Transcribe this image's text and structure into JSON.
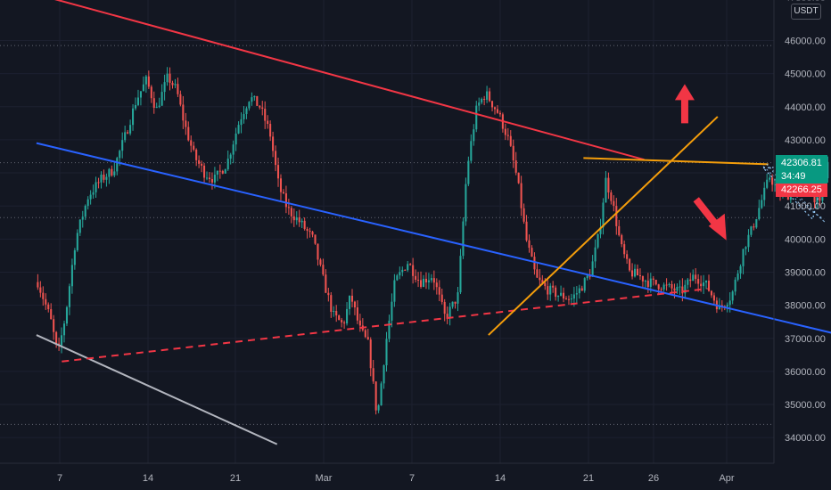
{
  "chart_data": {
    "type": "candlestick",
    "currency": "USDT",
    "y_ticks": [
      "34000.00",
      "35000.00",
      "36000.00",
      "37000.00",
      "38000.00",
      "39000.00",
      "40000.00",
      "41000.00",
      "42000.00",
      "43000.00",
      "44000.00",
      "45000.00",
      "46000.00"
    ],
    "ylim": [
      33400,
      47300
    ],
    "x_ticks": [
      "7",
      "14",
      "21",
      "Mar",
      "7",
      "14",
      "21",
      "26",
      "Apr"
    ],
    "xlim_days": [
      0,
      53
    ],
    "last_price": "42306.81",
    "countdown": "34:49",
    "second_price": "42266.25",
    "key_levels": [
      45850,
      42306.81,
      40650,
      34400
    ],
    "anchors": [
      [
        0,
        38700
      ],
      [
        1,
        37600
      ],
      [
        1.6,
        36500
      ],
      [
        2.2,
        37700
      ],
      [
        3,
        40000
      ],
      [
        4,
        41300
      ],
      [
        5,
        41800
      ],
      [
        6,
        42100
      ],
      [
        7,
        43200
      ],
      [
        7.8,
        44200
      ],
      [
        8.6,
        44800
      ],
      [
        9.4,
        43900
      ],
      [
        10.3,
        44900
      ],
      [
        11,
        44500
      ],
      [
        11.6,
        43500
      ],
      [
        12.4,
        42500
      ],
      [
        13.2,
        42000
      ],
      [
        14,
        41800
      ],
      [
        15,
        42300
      ],
      [
        16,
        43600
      ],
      [
        16.8,
        44300
      ],
      [
        17.6,
        44000
      ],
      [
        18.4,
        43200
      ],
      [
        19.1,
        41600
      ],
      [
        19.8,
        40900
      ],
      [
        20.8,
        40500
      ],
      [
        21.8,
        40000
      ],
      [
        22.6,
        38800
      ],
      [
        23.4,
        37700
      ],
      [
        24.2,
        37400
      ],
      [
        24.8,
        38300
      ],
      [
        25.5,
        37300
      ],
      [
        26.2,
        36800
      ],
      [
        26.9,
        34600
      ],
      [
        27.6,
        36900
      ],
      [
        28.3,
        38700
      ],
      [
        29.3,
        39300
      ],
      [
        30.3,
        38700
      ],
      [
        31.3,
        38900
      ],
      [
        32.3,
        37600
      ],
      [
        33.3,
        38300
      ],
      [
        34,
        42100
      ],
      [
        34.8,
        44000
      ],
      [
        35.5,
        44400
      ],
      [
        36.5,
        43800
      ],
      [
        37.3,
        43000
      ],
      [
        38,
        41800
      ],
      [
        38.7,
        40000
      ],
      [
        39.5,
        38800
      ],
      [
        40.3,
        38500
      ],
      [
        41.3,
        38300
      ],
      [
        42.3,
        38200
      ],
      [
        43,
        38500
      ],
      [
        43.8,
        39000
      ],
      [
        44.5,
        40200
      ],
      [
        45,
        41800
      ],
      [
        45.5,
        41200
      ],
      [
        46.2,
        39800
      ],
      [
        46.9,
        39000
      ],
      [
        47.6,
        38900
      ],
      [
        48.4,
        38700
      ],
      [
        49.4,
        38600
      ],
      [
        50.2,
        38500
      ],
      [
        51,
        38400
      ],
      [
        52,
        38900
      ],
      [
        53,
        38600
      ],
      [
        54,
        37900
      ],
      [
        55,
        38300
      ],
      [
        56,
        39800
      ],
      [
        56.6,
        40300
      ],
      [
        57.3,
        41100
      ],
      [
        58,
        41900
      ],
      [
        58.7,
        41400
      ],
      [
        59.4,
        41300
      ],
      [
        60.1,
        41800
      ],
      [
        60.8,
        42400
      ],
      [
        61.5,
        41300
      ],
      [
        62,
        41000
      ],
      [
        62.6,
        42300
      ]
    ],
    "candle_count": 300,
    "drawings": [
      {
        "color": "#f23645",
        "style": "solid",
        "from": [
          0,
          47400
        ],
        "to": [
          48,
          42400
        ]
      },
      {
        "color": "#2962ff",
        "style": "solid",
        "from": [
          0,
          42900
        ],
        "to": [
          69,
          36600
        ]
      },
      {
        "color": "#b2b5be",
        "style": "solid",
        "from": [
          0,
          37100
        ],
        "to": [
          19,
          33800
        ]
      },
      {
        "color": "#f23645",
        "style": "dashed",
        "from": [
          2,
          36300
        ],
        "to": [
          53,
          38500
        ]
      },
      {
        "color": "#f59e0b",
        "style": "solid",
        "from": [
          35.7,
          37100
        ],
        "to": [
          53.8,
          43700
        ]
      },
      {
        "color": "#f59e0b",
        "style": "solid",
        "from": [
          43.2,
          42450
        ],
        "to": [
          57.8,
          42260
        ]
      }
    ],
    "arrows": [
      {
        "color": "#f23645",
        "direction": "up",
        "at": [
          51.2,
          43500
        ]
      },
      {
        "color": "#f23645",
        "direction": "down-right",
        "at": [
          52.1,
          41200
        ]
      }
    ]
  }
}
